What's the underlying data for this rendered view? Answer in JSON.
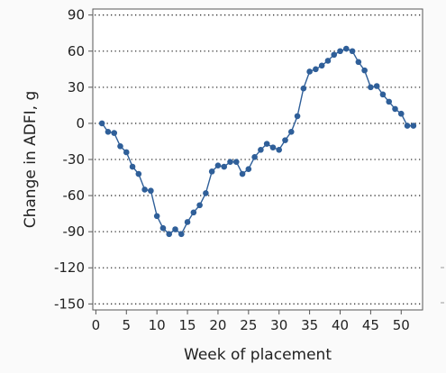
{
  "chart_data": {
    "type": "line",
    "title": "",
    "xlabel": "Week of placement",
    "ylabel": "Change in ADFI, g",
    "xlim": [
      -0.5,
      53.5
    ],
    "ylim": [
      -155,
      95
    ],
    "xticks": [
      0,
      5,
      10,
      15,
      20,
      25,
      30,
      35,
      40,
      45,
      50
    ],
    "yticks": [
      90,
      60,
      30,
      0,
      -30,
      -60,
      -90,
      -120,
      -150
    ],
    "grid": {
      "horizontal": true,
      "style": "dotted"
    },
    "legend": "none",
    "series": [
      {
        "color": "#2f5f99",
        "x": [
          1,
          2,
          3,
          4,
          5,
          6,
          7,
          8,
          9,
          10,
          11,
          12,
          13,
          14,
          15,
          16,
          17,
          18,
          19,
          20,
          21,
          22,
          23,
          24,
          25,
          26,
          27,
          28,
          29,
          30,
          31,
          32,
          33,
          34,
          35,
          36,
          37,
          38,
          39,
          40,
          41,
          42,
          43,
          44,
          45,
          46,
          47,
          48,
          49,
          50,
          51,
          52
        ],
        "y": [
          0,
          -7,
          -8,
          -19,
          -24,
          -36,
          -42,
          -55,
          -56,
          -77,
          -87,
          -92,
          -88,
          -92,
          -82,
          -74,
          -68,
          -58,
          -40,
          -35,
          -36,
          -32,
          -32,
          -42,
          -38,
          -28,
          -22,
          -17,
          -20,
          -22,
          -14,
          -7,
          6,
          29,
          43,
          45,
          48,
          52,
          57,
          60,
          62,
          60,
          51,
          44,
          30,
          31,
          24,
          18,
          12,
          8,
          -2,
          -2
        ]
      }
    ]
  }
}
